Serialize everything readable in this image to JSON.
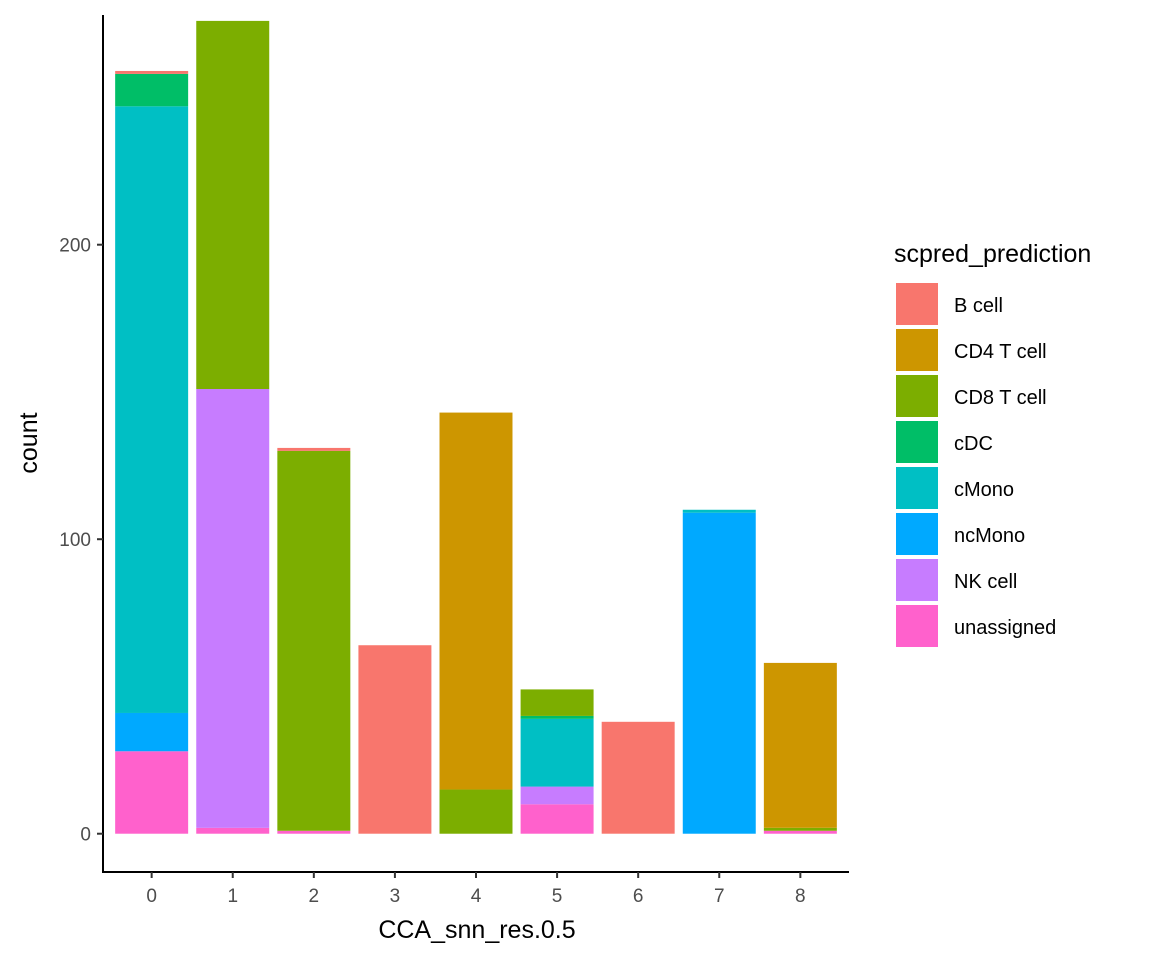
{
  "chart_data": {
    "type": "bar",
    "stacked": true,
    "xlabel": "CCA_snn_res.0.5",
    "ylabel": "count",
    "ylim": [
      -13,
      278
    ],
    "yticks": [
      0,
      100,
      200
    ],
    "categories": [
      "0",
      "1",
      "2",
      "3",
      "4",
      "5",
      "6",
      "7",
      "8"
    ],
    "legend": {
      "title": "scpred_prediction",
      "position": "right"
    },
    "grid": false,
    "series": [
      {
        "name": "unassigned",
        "color": "#FF61CC",
        "values": [
          28,
          2,
          1,
          0,
          0,
          10,
          0,
          0,
          1
        ]
      },
      {
        "name": "NK cell",
        "color": "#C77CFF",
        "values": [
          0,
          149,
          0,
          0,
          0,
          6,
          0,
          0,
          0
        ]
      },
      {
        "name": "ncMono",
        "color": "#00A9FF",
        "values": [
          13,
          0,
          0,
          0,
          0,
          0,
          0,
          109,
          0
        ]
      },
      {
        "name": "cMono",
        "color": "#00BFC4",
        "values": [
          206,
          0,
          0,
          0,
          0,
          23,
          0,
          1,
          0
        ]
      },
      {
        "name": "cDC",
        "color": "#00BE67",
        "values": [
          11,
          0,
          0,
          0,
          0,
          1,
          0,
          0,
          0
        ]
      },
      {
        "name": "CD8 T cell",
        "color": "#7CAE00",
        "values": [
          0,
          125,
          129,
          0,
          15,
          9,
          0,
          0,
          1
        ]
      },
      {
        "name": "CD4 T cell",
        "color": "#CD9600",
        "values": [
          0,
          0,
          0,
          0,
          128,
          0,
          0,
          0,
          56
        ]
      },
      {
        "name": "B cell",
        "color": "#F8766D",
        "values": [
          1,
          0,
          1,
          64,
          0,
          0,
          38,
          0,
          0
        ]
      }
    ],
    "legend_order": [
      "B cell",
      "CD4 T cell",
      "CD8 T cell",
      "cDC",
      "cMono",
      "ncMono",
      "NK cell",
      "unassigned"
    ]
  }
}
